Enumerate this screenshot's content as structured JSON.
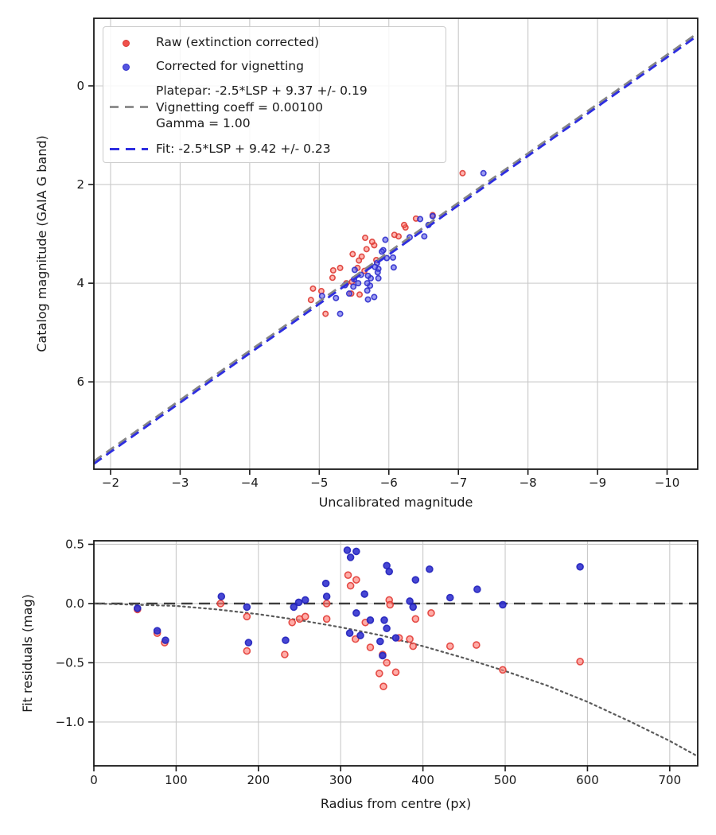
{
  "figure": {
    "background": "#ffffff"
  },
  "chart_data": [
    {
      "type": "scatter",
      "title": "",
      "xlabel": "Uncalibrated magnitude",
      "ylabel": "Catalog magnitude (GAIA G band)",
      "xlim": [
        -1.76,
        -10.44
      ],
      "ylim": [
        -1.37,
        7.77
      ],
      "xticks": [
        -2,
        -3,
        -4,
        -5,
        -6,
        -7,
        -8,
        -9,
        -10
      ],
      "xtick_labels": [
        "−2",
        "−3",
        "−4",
        "−5",
        "−6",
        "−7",
        "−8",
        "−9",
        "−10"
      ],
      "yticks": [
        0,
        2,
        4,
        6
      ],
      "ytick_labels": [
        "0",
        "2",
        "4",
        "6"
      ],
      "grid": true,
      "legend_items": [
        {
          "label": "Raw (extinction corrected)",
          "marker": "dot",
          "color": "#f0524c",
          "edge": "#d93a34"
        },
        {
          "label": "Corrected for vignetting",
          "marker": "dot",
          "color": "#5555e0",
          "edge": "#2d2dcc"
        },
        {
          "lines": [
            "Platepar: -2.5*LSP + 9.37 +/- 0.19",
            "Vignetting coeff = 0.00100",
            "Gamma = 1.00"
          ],
          "marker": "dash",
          "color": "#909090"
        },
        {
          "label": "Fit: -2.5*LSP + 9.42 +/- 0.23",
          "marker": "dash",
          "color": "#2e2ee0"
        }
      ],
      "series": [
        {
          "name": "Raw (extinction corrected)",
          "type": "scatter",
          "color": "#ff6a60",
          "edge_color": "#dd3a33",
          "marker_size": 3.2,
          "fill_opacity": 0.5,
          "points": [
            [
              -7.06,
              1.77
            ],
            [
              -6.63,
              2.62
            ],
            [
              -6.39,
              2.69
            ],
            [
              -6.24,
              2.87
            ],
            [
              -6.22,
              2.82
            ],
            [
              -6.14,
              3.05
            ],
            [
              -6.08,
              3.02
            ],
            [
              -5.82,
              3.53
            ],
            [
              -5.79,
              3.23
            ],
            [
              -5.76,
              3.16
            ],
            [
              -5.68,
              3.31
            ],
            [
              -5.66,
              3.08
            ],
            [
              -5.65,
              3.75
            ],
            [
              -5.61,
              3.46
            ],
            [
              -5.57,
              3.54
            ],
            [
              -5.55,
              3.69
            ],
            [
              -5.48,
              3.41
            ],
            [
              -5.47,
              3.97
            ],
            [
              -5.46,
              4.21
            ],
            [
              -5.58,
              4.23
            ],
            [
              -5.39,
              4.0
            ],
            [
              -5.3,
              3.69
            ],
            [
              -5.2,
              3.74
            ],
            [
              -5.19,
              3.89
            ],
            [
              -5.03,
              4.16
            ],
            [
              -4.91,
              4.11
            ],
            [
              -4.88,
              4.34
            ],
            [
              -5.09,
              4.62
            ]
          ]
        },
        {
          "name": "Corrected for vignetting",
          "type": "scatter",
          "color": "#5a5ae8",
          "edge_color": "#2d2dcc",
          "marker_size": 3.2,
          "fill_opacity": 0.6,
          "points": [
            [
              -7.36,
              1.77
            ],
            [
              -6.63,
              2.64
            ],
            [
              -6.57,
              2.82
            ],
            [
              -6.51,
              3.05
            ],
            [
              -6.45,
              2.7
            ],
            [
              -6.3,
              3.07
            ],
            [
              -6.07,
              3.68
            ],
            [
              -6.06,
              3.48
            ],
            [
              -5.97,
              3.49
            ],
            [
              -5.95,
              3.12
            ],
            [
              -5.92,
              3.33
            ],
            [
              -5.9,
              3.36
            ],
            [
              -5.85,
              3.71
            ],
            [
              -5.84,
              3.78
            ],
            [
              -5.83,
              3.59
            ],
            [
              -5.8,
              3.67
            ],
            [
              -5.85,
              3.9
            ],
            [
              -5.74,
              3.9
            ],
            [
              -5.73,
              4.05
            ],
            [
              -5.7,
              3.85
            ],
            [
              -5.7,
              4.33
            ],
            [
              -5.69,
              4.0
            ],
            [
              -5.69,
              4.15
            ],
            [
              -5.6,
              3.83
            ],
            [
              -5.56,
              4.0
            ],
            [
              -5.51,
              3.73
            ],
            [
              -5.5,
              3.92
            ],
            [
              -5.49,
              4.07
            ],
            [
              -5.43,
              4.21
            ],
            [
              -5.37,
              4.04
            ],
            [
              -5.24,
              4.3
            ],
            [
              -5.04,
              4.26
            ],
            [
              -5.3,
              4.62
            ],
            [
              -5.79,
              4.28
            ]
          ]
        },
        {
          "name": "Platepar: -2.5*LSP + 9.37 +/- 0.19",
          "type": "line",
          "slope": 1,
          "intercept": 9.37,
          "color": "#868686",
          "dash": "12 7",
          "line_width": 2.8
        },
        {
          "name": "Fit: -2.5*LSP + 9.42 +/- 0.23",
          "type": "line",
          "slope": 1,
          "intercept": 9.42,
          "color": "#2e2ee0",
          "dash": "12 7",
          "line_width": 2.8
        }
      ]
    },
    {
      "type": "scatter",
      "title": "",
      "xlabel": "Radius from centre (px)",
      "ylabel": "Fit residuals (mag)",
      "xlim": [
        0,
        734
      ],
      "ylim": [
        0.53,
        -1.37
      ],
      "xticks": [
        0,
        100,
        200,
        300,
        400,
        500,
        600,
        700
      ],
      "xtick_labels": [
        "0",
        "100",
        "200",
        "300",
        "400",
        "500",
        "600",
        "700"
      ],
      "yticks": [
        0.5,
        0.0,
        -0.5,
        -1.0
      ],
      "ytick_labels": [
        "0.5",
        "0.0",
        "−0.5",
        "−1.0"
      ],
      "grid": true,
      "series": [
        {
          "name": "zero-line",
          "type": "hline",
          "y": 0,
          "color": "#3d3d3d",
          "dash": "14 8",
          "line_width": 2.4
        },
        {
          "name": "vignetting-model",
          "type": "curve",
          "color": "#5a5a5a",
          "dash": "2.4 4.2",
          "line_width": 2.2,
          "points": [
            [
              0,
              0
            ],
            [
              50,
              -0.01
            ],
            [
              100,
              -0.02
            ],
            [
              150,
              -0.05
            ],
            [
              200,
              -0.09
            ],
            [
              250,
              -0.14
            ],
            [
              300,
              -0.2
            ],
            [
              350,
              -0.27
            ],
            [
              400,
              -0.36
            ],
            [
              450,
              -0.46
            ],
            [
              500,
              -0.57
            ],
            [
              550,
              -0.69
            ],
            [
              600,
              -0.83
            ],
            [
              650,
              -0.99
            ],
            [
              700,
              -1.16
            ],
            [
              734,
              -1.29
            ]
          ]
        },
        {
          "name": "Raw residuals",
          "type": "scatter",
          "color": "#ff8078",
          "edge_color": "#e23c36",
          "marker_size": 4,
          "fill_opacity": 0.65,
          "points": [
            [
              53,
              -0.05
            ],
            [
              77,
              -0.25
            ],
            [
              86,
              -0.33
            ],
            [
              154,
              0.0
            ],
            [
              186,
              -0.11
            ],
            [
              186,
              -0.4
            ],
            [
              232,
              -0.43
            ],
            [
              241,
              -0.16
            ],
            [
              250,
              -0.13
            ],
            [
              257,
              -0.11
            ],
            [
              283,
              0.0
            ],
            [
              283,
              -0.13
            ],
            [
              309,
              0.24
            ],
            [
              312,
              0.15
            ],
            [
              319,
              0.2
            ],
            [
              318,
              -0.3
            ],
            [
              330,
              -0.16
            ],
            [
              336,
              -0.37
            ],
            [
              347,
              -0.59
            ],
            [
              351,
              -0.43
            ],
            [
              352,
              -0.7
            ],
            [
              356,
              -0.5
            ],
            [
              359,
              0.03
            ],
            [
              360,
              -0.01
            ],
            [
              367,
              -0.58
            ],
            [
              371,
              -0.29
            ],
            [
              384,
              -0.3
            ],
            [
              388,
              -0.36
            ],
            [
              391,
              -0.13
            ],
            [
              410,
              -0.08
            ],
            [
              433,
              -0.36
            ],
            [
              465,
              -0.35
            ],
            [
              497,
              -0.56
            ],
            [
              591,
              -0.49
            ]
          ]
        },
        {
          "name": "Corrected residuals",
          "type": "scatter",
          "color": "#3333cf",
          "edge_color": "#2222bb",
          "marker_size": 4,
          "fill_opacity": 0.9,
          "points": [
            [
              53,
              -0.04
            ],
            [
              77,
              -0.23
            ],
            [
              87,
              -0.31
            ],
            [
              155,
              0.06
            ],
            [
              186,
              -0.03
            ],
            [
              188,
              -0.33
            ],
            [
              233,
              -0.31
            ],
            [
              243,
              -0.03
            ],
            [
              249,
              0.01
            ],
            [
              257,
              0.03
            ],
            [
              282,
              0.17
            ],
            [
              283,
              0.06
            ],
            [
              308,
              0.45
            ],
            [
              312,
              0.39
            ],
            [
              319,
              0.44
            ],
            [
              311,
              -0.25
            ],
            [
              324,
              -0.27
            ],
            [
              319,
              -0.08
            ],
            [
              329,
              0.08
            ],
            [
              336,
              -0.14
            ],
            [
              348,
              -0.32
            ],
            [
              351,
              -0.44
            ],
            [
              353,
              -0.14
            ],
            [
              356,
              -0.21
            ],
            [
              356,
              0.32
            ],
            [
              359,
              0.27
            ],
            [
              367,
              -0.29
            ],
            [
              384,
              0.02
            ],
            [
              388,
              -0.03
            ],
            [
              391,
              0.2
            ],
            [
              408,
              0.29
            ],
            [
              433,
              0.05
            ],
            [
              466,
              0.12
            ],
            [
              497,
              -0.01
            ],
            [
              591,
              0.31
            ]
          ]
        }
      ]
    }
  ]
}
